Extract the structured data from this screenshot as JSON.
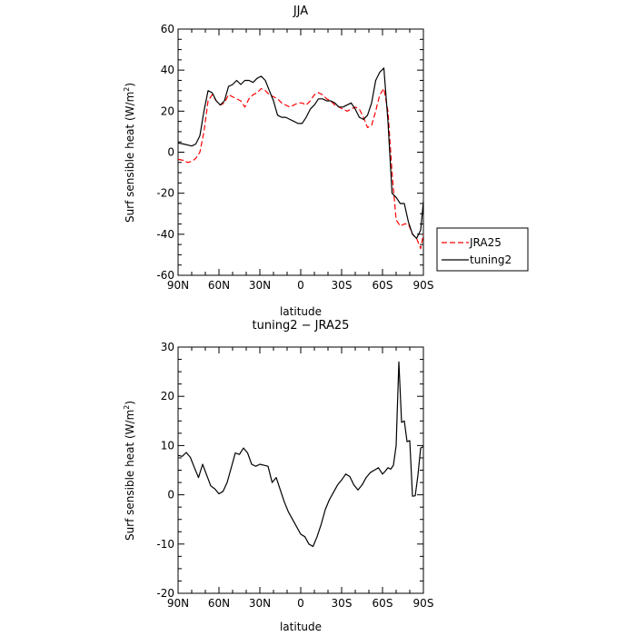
{
  "chart_data": [
    {
      "type": "line",
      "title": "JJA",
      "xlabel": "latitude",
      "ylabel": "Surf sensible heat (W/m²)",
      "ylabel_main": "Surf sensible heat (W/m",
      "ylabel_sup": "2",
      "ylabel_tail": ")",
      "xlim": [
        90,
        -90
      ],
      "ylim": [
        -60,
        60
      ],
      "xticks": [
        {
          "value": 90,
          "label": "90N"
        },
        {
          "value": 60,
          "label": "60N"
        },
        {
          "value": 30,
          "label": "30N"
        },
        {
          "value": 0,
          "label": "0"
        },
        {
          "value": -30,
          "label": "30S"
        },
        {
          "value": -60,
          "label": "60S"
        },
        {
          "value": -90,
          "label": "90S"
        }
      ],
      "yticks": [
        {
          "value": -60,
          "label": "-60"
        },
        {
          "value": -40,
          "label": "-40"
        },
        {
          "value": -20,
          "label": "-20"
        },
        {
          "value": 0,
          "label": "0"
        },
        {
          "value": 20,
          "label": "20"
        },
        {
          "value": 40,
          "label": "40"
        },
        {
          "value": 60,
          "label": "60"
        }
      ],
      "legend": {
        "position": "right",
        "entries": [
          "JRA25",
          "tuning2"
        ]
      },
      "series": [
        {
          "name": "JRA25",
          "color": "#ff0000",
          "dash": "dashed",
          "x": [
            90,
            86,
            83,
            80,
            77,
            74,
            71,
            68,
            65,
            62,
            59,
            56,
            53,
            50,
            47,
            44,
            41,
            38,
            35,
            32,
            29,
            26,
            23,
            20,
            17,
            14,
            11,
            8,
            5,
            2,
            -1,
            -4,
            -7,
            -10,
            -13,
            -16,
            -19,
            -22,
            -25,
            -28,
            -31,
            -34,
            -37,
            -40,
            -43,
            -46,
            -49,
            -52,
            -55,
            -58,
            -61,
            -64,
            -67,
            -70,
            -73,
            -76,
            -79,
            -82,
            -85,
            -88,
            -90
          ],
          "y": [
            -3.5,
            -4,
            -5,
            -4.5,
            -3,
            0,
            10,
            25,
            28,
            25,
            23,
            24,
            28,
            27,
            26,
            25,
            22,
            26,
            28,
            29,
            31,
            30,
            28,
            27,
            26,
            24,
            23,
            22,
            23,
            24,
            24,
            23,
            25,
            28,
            29,
            28,
            26,
            25,
            23,
            22,
            21,
            20,
            21,
            22,
            21,
            17,
            12,
            13,
            20,
            28,
            31,
            20,
            -10,
            -33,
            -36,
            -35,
            -35,
            -40,
            -42,
            -47,
            -40
          ]
        },
        {
          "name": "tuning2",
          "color": "#000000",
          "dash": "solid",
          "x": [
            90,
            86,
            83,
            80,
            77,
            74,
            71,
            68,
            65,
            62,
            59,
            56,
            53,
            50,
            47,
            44,
            41,
            38,
            35,
            32,
            29,
            26,
            23,
            20,
            17,
            14,
            11,
            8,
            5,
            2,
            -1,
            -4,
            -7,
            -10,
            -13,
            -16,
            -19,
            -22,
            -25,
            -28,
            -31,
            -34,
            -37,
            -40,
            -43,
            -46,
            -49,
            -52,
            -55,
            -58,
            -61,
            -64,
            -67,
            -70,
            -73,
            -76,
            -79,
            -82,
            -85,
            -88,
            -90
          ],
          "y": [
            4.5,
            4,
            3.5,
            3,
            4,
            8,
            20,
            30,
            29,
            25,
            23,
            25,
            32,
            33,
            35,
            33,
            35,
            35,
            34,
            36,
            37,
            35,
            30,
            25,
            18,
            17,
            17,
            16,
            15,
            14,
            14,
            17,
            21,
            23,
            26,
            26,
            25,
            25,
            24,
            22,
            22,
            23,
            24,
            21,
            17,
            16,
            18,
            24,
            35,
            39,
            41,
            15,
            -20,
            -22,
            -25,
            -25,
            -34,
            -40,
            -42,
            -38,
            -24
          ]
        }
      ]
    },
    {
      "type": "line",
      "title": "tuning2 − JRA25",
      "xlabel": "latitude",
      "ylabel": "Surf sensible heat (W/m²)",
      "ylabel_main": "Surf sensible heat (W/m",
      "ylabel_sup": "2",
      "ylabel_tail": ")",
      "xlim": [
        90,
        -90
      ],
      "ylim": [
        -20,
        30
      ],
      "xticks": [
        {
          "value": 90,
          "label": "90N"
        },
        {
          "value": 60,
          "label": "60N"
        },
        {
          "value": 30,
          "label": "30N"
        },
        {
          "value": 0,
          "label": "0"
        },
        {
          "value": -30,
          "label": "30S"
        },
        {
          "value": -60,
          "label": "60S"
        },
        {
          "value": -90,
          "label": "90S"
        }
      ],
      "yticks": [
        {
          "value": -20,
          "label": "-20"
        },
        {
          "value": -10,
          "label": "-10"
        },
        {
          "value": 0,
          "label": "0"
        },
        {
          "value": 10,
          "label": "10"
        },
        {
          "value": 20,
          "label": "20"
        },
        {
          "value": 30,
          "label": "30"
        }
      ],
      "series": [
        {
          "name": "tuning2 − JRA25",
          "color": "#000000",
          "dash": "solid",
          "x": [
            90,
            87,
            84,
            81,
            78,
            75,
            72,
            69,
            66,
            63,
            60,
            57,
            54,
            51,
            48,
            45,
            42,
            39,
            36,
            33,
            30,
            27,
            24,
            21,
            18,
            15,
            12,
            9,
            6,
            3,
            0,
            -3,
            -6,
            -9,
            -12,
            -15,
            -18,
            -21,
            -24,
            -27,
            -30,
            -33,
            -36,
            -39,
            -42,
            -45,
            -48,
            -51,
            -54,
            -57,
            -60,
            -62,
            -64,
            -66,
            -68,
            -70,
            -72,
            -74,
            -76,
            -78,
            -80,
            -82,
            -84,
            -86,
            -88,
            -90
          ],
          "y": [
            8,
            7.8,
            8.6,
            7.6,
            5.5,
            3.5,
            6.2,
            4,
            1.8,
            1.2,
            0.2,
            0.7,
            2.5,
            5.5,
            8.5,
            8.2,
            9.5,
            8.5,
            6.2,
            5.8,
            6.2,
            6,
            5.8,
            2.5,
            3.5,
            1,
            -1.5,
            -3.5,
            -5,
            -6.5,
            -8,
            -8.5,
            -10,
            -10.5,
            -8.5,
            -6,
            -3,
            -1,
            0.5,
            2,
            3,
            4.2,
            3.7,
            2,
            1,
            2,
            3.5,
            4.5,
            5,
            5.5,
            4.2,
            4.8,
            5.5,
            5.2,
            6,
            10,
            27,
            14.7,
            15,
            10.8,
            11,
            -0.3,
            -0.2,
            4,
            9.5,
            9.8
          ]
        }
      ]
    }
  ]
}
